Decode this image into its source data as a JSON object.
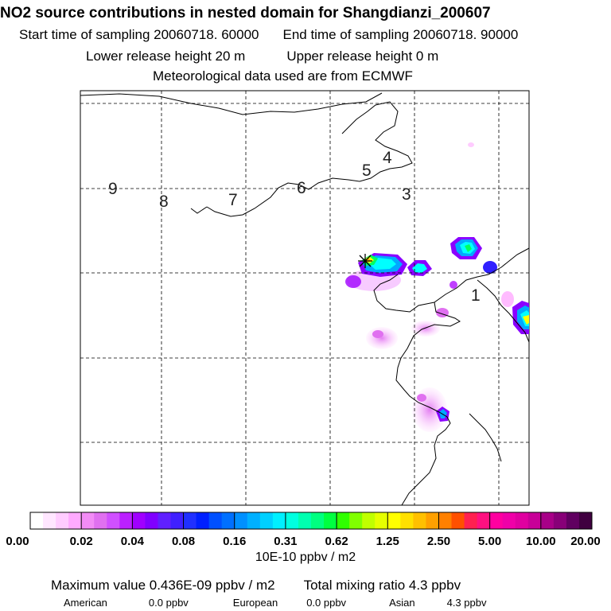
{
  "header": {
    "title": "NO2 source contributions in nested domain for Shangdianzi_200607",
    "start_label": "Start time of sampling 20060718. 60000",
    "end_label": "End time of sampling 20060718. 90000",
    "lower_label": "Lower release height   20 m",
    "upper_label": "Upper release height    0 m",
    "met_label": "Meteorological data used are from ECMWF"
  },
  "map": {
    "grid_lines": "dashed",
    "region_numbers": [
      "9",
      "8",
      "7",
      "6",
      "5",
      "4",
      "3",
      "1"
    ],
    "receptor_marker": "star",
    "plume_colors": [
      "#ff88ff",
      "#c040ff",
      "#8a00ff",
      "#3020ff",
      "#00a8ff",
      "#00ffff",
      "#00ff60",
      "#ffff00",
      "#ffb000"
    ]
  },
  "chart_data": {
    "type": "heatmap",
    "title": "NO2 source contributions in nested domain for Shangdianzi_200607",
    "colorbar": {
      "tick_labels": [
        "0.00",
        "0.02",
        "0.04",
        "0.08",
        "0.16",
        "0.31",
        "0.62",
        "1.25",
        "2.50",
        "5.00",
        "10.00",
        "20.00"
      ],
      "unit": "10E-10 ppbv / m2",
      "colors": [
        "#ffffff",
        "#ffe6ff",
        "#ffccff",
        "#ffaaff",
        "#f28cf6",
        "#e070f0",
        "#d050ff",
        "#bb20ff",
        "#a000ff",
        "#8000ff",
        "#6020ff",
        "#4020ff",
        "#2030ff",
        "#0020ff",
        "#0050ff",
        "#0070ff",
        "#0090ff",
        "#00b0ff",
        "#00d0ff",
        "#00f0ff",
        "#00ffe0",
        "#00ffb0",
        "#00ff80",
        "#00ff40",
        "#30ff00",
        "#80ff00",
        "#c0ff00",
        "#e6ff00",
        "#ffff00",
        "#ffe000",
        "#ffc000",
        "#ffa000",
        "#ff8000",
        "#ff5000",
        "#ff2050",
        "#ff1080",
        "#ff00a0",
        "#f000a8",
        "#e000a0",
        "#c80098",
        "#a80088",
        "#880078",
        "#600060",
        "#400040"
      ]
    },
    "colorscale": "logarithmic"
  },
  "stats": {
    "max_value": "Maximum value  0.436E-09 ppbv / m2",
    "total_mixing": "Total mixing ratio       4.3 ppbv",
    "american_label": "American",
    "american_value": "0.0 ppbv",
    "european_label": "European",
    "european_value": "0.0 ppbv",
    "asian_label": "Asian",
    "asian_value": "4.3 ppbv"
  }
}
